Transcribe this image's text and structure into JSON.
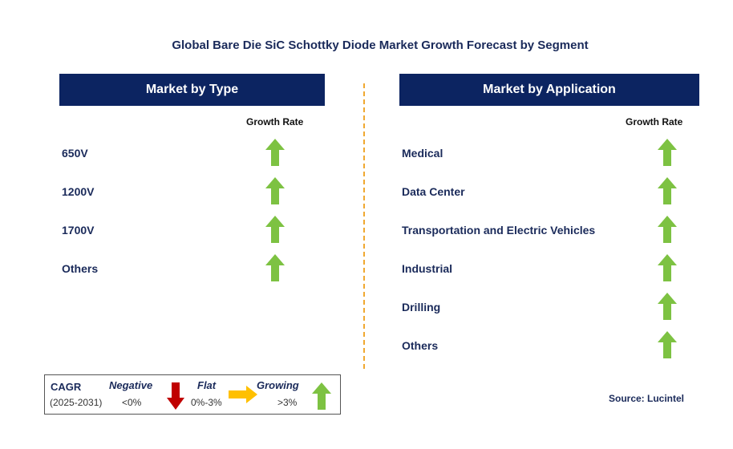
{
  "title": "Global Bare Die SiC Schottky Diode Market Growth Forecast by Segment",
  "left_panel": {
    "header": "Market by Type",
    "growth_label": "Growth Rate",
    "rows": [
      {
        "label": "650V",
        "trend": "growing"
      },
      {
        "label": "1200V",
        "trend": "growing"
      },
      {
        "label": "1700V",
        "trend": "growing"
      },
      {
        "label": "Others",
        "trend": "growing"
      }
    ]
  },
  "right_panel": {
    "header": "Market by Application",
    "growth_label": "Growth Rate",
    "rows": [
      {
        "label": "Medical",
        "trend": "growing"
      },
      {
        "label": "Data Center",
        "trend": "growing"
      },
      {
        "label": "Transportation and Electric Vehicles",
        "trend": "growing"
      },
      {
        "label": "Industrial",
        "trend": "growing"
      },
      {
        "label": "Drilling",
        "trend": "growing"
      },
      {
        "label": "Others",
        "trend": "growing"
      }
    ]
  },
  "legend": {
    "cagr_label": "CAGR",
    "period": "(2025-2031)",
    "negative_label": "Negative",
    "negative_value": "<0%",
    "flat_label": "Flat",
    "flat_value": "0%-3%",
    "growing_label": "Growing",
    "growing_value": ">3%"
  },
  "source": "Source: Lucintel",
  "colors": {
    "header_bg": "#0c2461",
    "growing_arrow": "#7dc242",
    "negative_arrow": "#c00000",
    "flat_arrow": "#ffc000",
    "divider": "#f0a830"
  }
}
